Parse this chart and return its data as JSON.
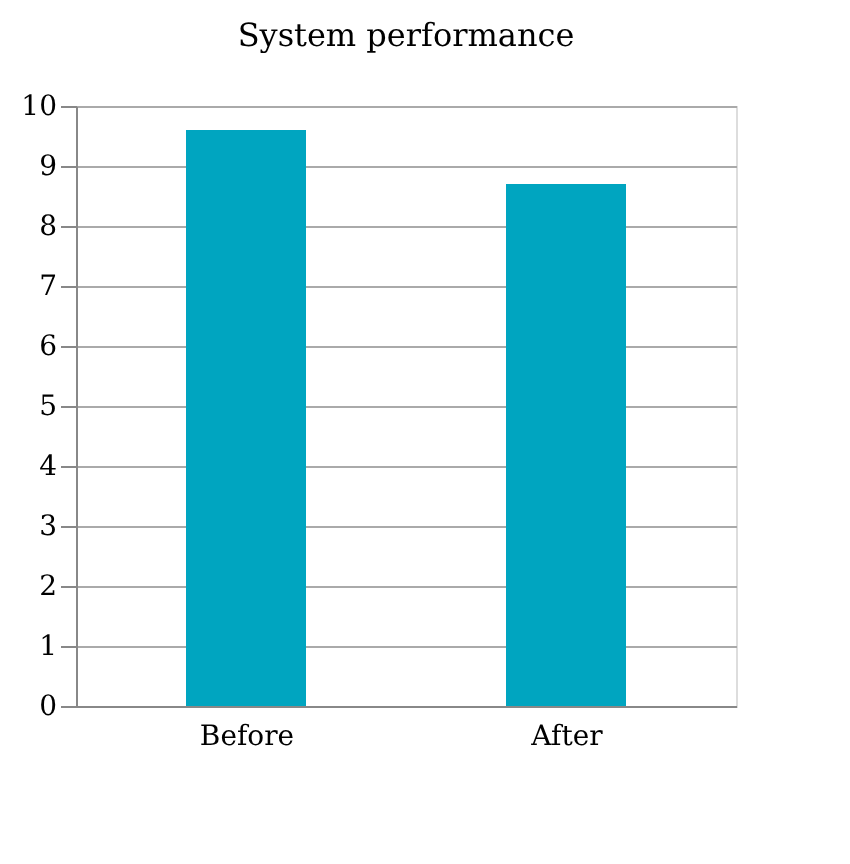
{
  "chart_data": {
    "type": "bar",
    "title": "System performance",
    "categories": [
      "Before",
      "After"
    ],
    "values": [
      9.6,
      8.7
    ],
    "color": "#00a5c0",
    "ylim": [
      0,
      10
    ],
    "yticks": [
      0,
      1,
      2,
      3,
      4,
      5,
      6,
      7,
      8,
      9,
      10
    ],
    "grid": "y"
  }
}
